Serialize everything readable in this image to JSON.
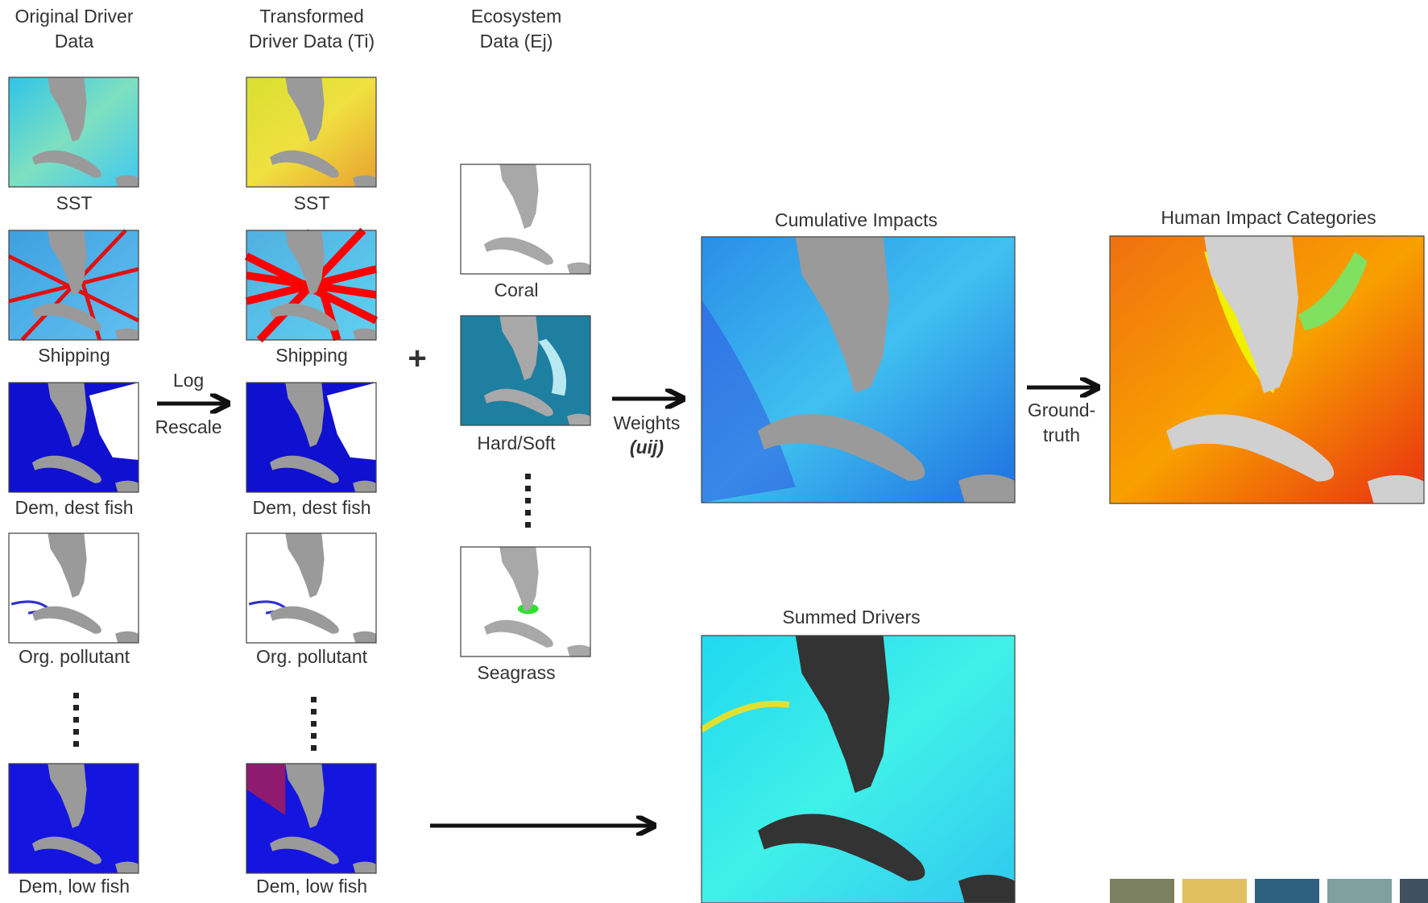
{
  "columns": [
    {
      "title": "Original Driver Data",
      "items": [
        "SST",
        "Shipping",
        "Dem, dest fish",
        "Org. pollutant",
        "Dem, low fish"
      ]
    },
    {
      "title": "Transformed Driver Data (Ti)",
      "items": [
        "SST",
        "Shipping",
        "Dem, dest fish",
        "Org. pollutant",
        "Dem, low fish"
      ]
    },
    {
      "title": "Ecosystem Data (Ej)",
      "items": [
        "Coral",
        "Hard/Soft",
        "Seagrass"
      ]
    }
  ],
  "transform": {
    "top": "Log",
    "bottom": "Rescale"
  },
  "plus": "+",
  "weights": {
    "label": "Weights",
    "symbol": "(uij)"
  },
  "outputs": {
    "cumulative": "Cumulative Impacts",
    "summed": "Summed Drivers",
    "categories": "Human Impact Categories"
  },
  "groundtruth": "Ground-truth"
}
